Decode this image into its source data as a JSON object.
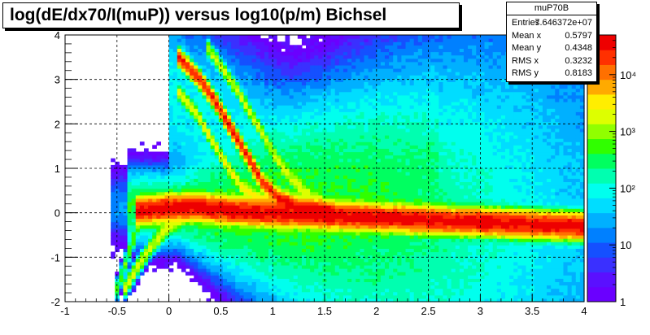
{
  "title": "log(dE/dx70/I(muP)) versus log10(p/m) Bichsel",
  "stats": {
    "name": "muP70B",
    "rows": [
      {
        "label": "Entries",
        "value": "7.646372e+07"
      },
      {
        "label": "Mean x",
        "value": "0.5797"
      },
      {
        "label": "Mean y",
        "value": "0.4348"
      },
      {
        "label": "RMS x",
        "value": "0.3232"
      },
      {
        "label": "RMS y",
        "value": "0.8183"
      }
    ]
  },
  "colors": {
    "palette": [
      "#6a00ff",
      "#5a10ff",
      "#3a30ff",
      "#1550ff",
      "#0080ff",
      "#00b0ff",
      "#00ddff",
      "#00ffee",
      "#00ffb0",
      "#00ff60",
      "#30ff00",
      "#90ff00",
      "#ddff00",
      "#ffee00",
      "#ffaa00",
      "#ff7000",
      "#ff3000",
      "#ee0000"
    ]
  },
  "chart_data": {
    "type": "heatmap",
    "title": "log(dE/dx70/I(muP)) versus log10(p/m) Bichsel",
    "xlim": [
      -1,
      4
    ],
    "ylim": [
      -2,
      4
    ],
    "x_ticks": [
      "-1",
      "-0.5",
      "0",
      "0.5",
      "1",
      "1.5",
      "2",
      "2.5",
      "3",
      "3.5",
      "4"
    ],
    "y_ticks": [
      "-2",
      "-1",
      "0",
      "1",
      "2",
      "3",
      "4"
    ],
    "grid": true,
    "z_scale": "log",
    "colorbar_ticks": [
      "1",
      "10",
      "10²",
      "10³",
      "10⁴"
    ],
    "colorbar_tick_values": [
      1,
      10,
      100,
      1000,
      10000
    ],
    "zmax": 50000,
    "bands": [
      {
        "name": "core",
        "points": [
          [
            -0.3,
            0.05
          ],
          [
            0.2,
            0.15
          ],
          [
            0.6,
            0.05
          ],
          [
            1.0,
            0.0
          ],
          [
            1.5,
            -0.05
          ],
          [
            2.0,
            -0.1
          ],
          [
            2.5,
            -0.15
          ],
          [
            3.0,
            -0.2
          ],
          [
            3.5,
            -0.25
          ],
          [
            4.0,
            -0.3
          ]
        ],
        "peak": 40000,
        "sy": 0.12
      },
      {
        "name": "proton",
        "points": [
          [
            0.1,
            3.5
          ],
          [
            0.3,
            3.0
          ],
          [
            0.45,
            2.5
          ],
          [
            0.6,
            1.9
          ],
          [
            0.75,
            1.3
          ],
          [
            0.9,
            0.7
          ],
          [
            1.05,
            0.35
          ],
          [
            1.25,
            0.15
          ],
          [
            1.6,
            0.05
          ]
        ],
        "peak": 25000,
        "sy": 0.08
      },
      {
        "name": "kaon",
        "points": [
          [
            0.1,
            2.7
          ],
          [
            0.25,
            2.3
          ],
          [
            0.4,
            1.7
          ],
          [
            0.55,
            1.1
          ],
          [
            0.7,
            0.6
          ],
          [
            0.85,
            0.35
          ],
          [
            1.0,
            0.2
          ]
        ],
        "peak": 2500,
        "sy": 0.07
      },
      {
        "name": "deuteron",
        "points": [
          [
            0.35,
            3.8
          ],
          [
            0.5,
            3.3
          ],
          [
            0.65,
            2.8
          ],
          [
            0.8,
            2.2
          ],
          [
            0.95,
            1.6
          ],
          [
            1.1,
            1.0
          ],
          [
            1.3,
            0.5
          ],
          [
            1.5,
            0.2
          ]
        ],
        "peak": 1500,
        "sy": 0.08
      },
      {
        "name": "electron",
        "points": [
          [
            -0.45,
            -1.8
          ],
          [
            -0.3,
            -1.2
          ],
          [
            -0.15,
            -0.7
          ],
          [
            0.0,
            -0.3
          ],
          [
            0.2,
            0.0
          ],
          [
            0.4,
            0.15
          ],
          [
            0.8,
            0.2
          ],
          [
            1.5,
            0.15
          ]
        ],
        "peak": 1800,
        "sy": 0.09
      },
      {
        "name": "low-pi",
        "points": [
          [
            -0.5,
            -1.7
          ],
          [
            -0.4,
            -1.0
          ],
          [
            -0.3,
            -0.3
          ],
          [
            -0.2,
            0.2
          ],
          [
            -0.05,
            0.3
          ],
          [
            0.1,
            0.25
          ]
        ],
        "peak": 600,
        "sy": 0.1
      }
    ]
  }
}
